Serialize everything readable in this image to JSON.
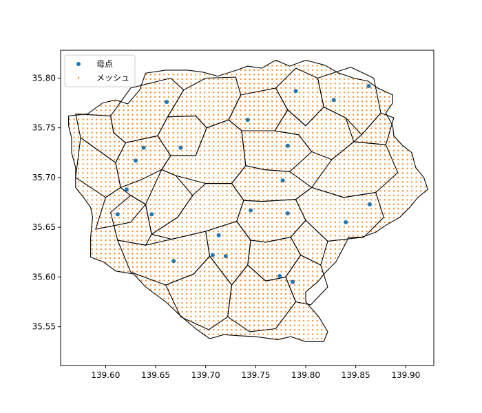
{
  "chart_data": {
    "type": "scatter",
    "title": "",
    "xlabel": "",
    "ylabel": "",
    "xlim": [
      139.555,
      139.928
    ],
    "ylim": [
      35.511,
      35.828
    ],
    "x_ticks": [
      "139.60",
      "139.65",
      "139.70",
      "139.75",
      "139.80",
      "139.85",
      "139.90"
    ],
    "y_ticks": [
      "35.55",
      "35.60",
      "35.65",
      "35.70",
      "35.75",
      "35.80"
    ],
    "grid": false,
    "legend_position": "upper-left",
    "series": [
      {
        "name": "母点",
        "color": "#1f77b4",
        "marker": "circle",
        "points": [
          [
            139.612,
            35.663
          ],
          [
            139.621,
            35.688
          ],
          [
            139.63,
            35.717
          ],
          [
            139.638,
            35.73
          ],
          [
            139.646,
            35.663
          ],
          [
            139.661,
            35.776
          ],
          [
            139.668,
            35.616
          ],
          [
            139.675,
            35.73
          ],
          [
            139.707,
            35.622
          ],
          [
            139.713,
            35.642
          ],
          [
            139.72,
            35.621
          ],
          [
            139.742,
            35.758
          ],
          [
            139.745,
            35.667
          ],
          [
            139.774,
            35.601
          ],
          [
            139.777,
            35.697
          ],
          [
            139.782,
            35.732
          ],
          [
            139.782,
            35.664
          ],
          [
            139.787,
            35.595
          ],
          [
            139.79,
            35.787
          ],
          [
            139.828,
            35.778
          ],
          [
            139.84,
            35.655
          ],
          [
            139.863,
            35.792
          ],
          [
            139.864,
            35.673
          ]
        ]
      },
      {
        "name": "メッシュ",
        "color": "#ff7f0e",
        "marker": "dot",
        "spacing": 0.0045
      }
    ],
    "voronoi_cells": [
      [
        [
          139.57,
          35.764
        ],
        [
          139.605,
          35.762
        ],
        [
          139.608,
          35.745
        ],
        [
          139.62,
          35.735
        ],
        [
          139.61,
          35.715
        ],
        [
          139.575,
          35.74
        ]
      ],
      [
        [
          139.575,
          35.74
        ],
        [
          139.61,
          35.715
        ],
        [
          139.615,
          35.69
        ],
        [
          139.6,
          35.68
        ],
        [
          139.57,
          35.7
        ]
      ],
      [
        [
          139.6,
          35.68
        ],
        [
          139.615,
          35.69
        ],
        [
          139.625,
          35.682
        ],
        [
          139.64,
          35.673
        ],
        [
          139.625,
          35.655
        ],
        [
          139.59,
          35.648
        ]
      ],
      [
        [
          139.62,
          35.735
        ],
        [
          139.652,
          35.742
        ],
        [
          139.665,
          35.722
        ],
        [
          139.656,
          35.708
        ],
        [
          139.636,
          35.698
        ],
        [
          139.615,
          35.69
        ],
        [
          139.61,
          35.715
        ]
      ],
      [
        [
          139.605,
          35.762
        ],
        [
          139.625,
          35.79
        ],
        [
          139.665,
          35.8
        ],
        [
          139.678,
          35.788
        ],
        [
          139.662,
          35.761
        ],
        [
          139.652,
          35.742
        ],
        [
          139.62,
          35.735
        ],
        [
          139.608,
          35.745
        ]
      ],
      [
        [
          139.652,
          35.742
        ],
        [
          139.662,
          35.761
        ],
        [
          139.69,
          35.762
        ],
        [
          139.701,
          35.75
        ],
        [
          139.69,
          35.722
        ],
        [
          139.665,
          35.722
        ]
      ],
      [
        [
          139.678,
          35.788
        ],
        [
          139.7,
          35.8
        ],
        [
          139.73,
          35.801
        ],
        [
          139.735,
          35.783
        ],
        [
          139.723,
          35.758
        ],
        [
          139.701,
          35.75
        ],
        [
          139.69,
          35.762
        ],
        [
          139.662,
          35.761
        ]
      ],
      [
        [
          139.665,
          35.722
        ],
        [
          139.69,
          35.722
        ],
        [
          139.701,
          35.75
        ],
        [
          139.723,
          35.758
        ],
        [
          139.736,
          35.747
        ],
        [
          139.74,
          35.712
        ],
        [
          139.726,
          35.694
        ],
        [
          139.7,
          35.694
        ],
        [
          139.67,
          35.702
        ],
        [
          139.656,
          35.708
        ]
      ],
      [
        [
          139.64,
          35.673
        ],
        [
          139.656,
          35.708
        ],
        [
          139.67,
          35.702
        ],
        [
          139.687,
          35.682
        ],
        [
          139.672,
          35.66
        ],
        [
          139.646,
          35.643
        ]
      ],
      [
        [
          139.625,
          35.682
        ],
        [
          139.64,
          35.673
        ],
        [
          139.646,
          35.643
        ],
        [
          139.64,
          35.632
        ],
        [
          139.612,
          35.637
        ],
        [
          139.605,
          35.665
        ]
      ],
      [
        [
          139.646,
          35.643
        ],
        [
          139.672,
          35.66
        ],
        [
          139.687,
          35.682
        ],
        [
          139.7,
          35.694
        ],
        [
          139.726,
          35.694
        ],
        [
          139.738,
          35.677
        ],
        [
          139.731,
          35.656
        ],
        [
          139.7,
          35.646
        ],
        [
          139.666,
          35.638
        ]
      ],
      [
        [
          139.612,
          35.637
        ],
        [
          139.64,
          35.632
        ],
        [
          139.666,
          35.638
        ],
        [
          139.7,
          35.646
        ],
        [
          139.704,
          35.621
        ],
        [
          139.688,
          35.603
        ],
        [
          139.66,
          35.592
        ],
        [
          139.625,
          35.605
        ]
      ],
      [
        [
          139.7,
          35.646
        ],
        [
          139.731,
          35.656
        ],
        [
          139.745,
          35.637
        ],
        [
          139.742,
          35.612
        ],
        [
          139.726,
          35.592
        ],
        [
          139.704,
          35.621
        ]
      ],
      [
        [
          139.688,
          35.603
        ],
        [
          139.704,
          35.621
        ],
        [
          139.726,
          35.592
        ],
        [
          139.722,
          35.56
        ],
        [
          139.703,
          35.547
        ],
        [
          139.675,
          35.56
        ],
        [
          139.66,
          35.592
        ]
      ],
      [
        [
          139.735,
          35.783
        ],
        [
          139.77,
          35.79
        ],
        [
          139.782,
          35.768
        ],
        [
          139.769,
          35.747
        ],
        [
          139.736,
          35.747
        ],
        [
          139.723,
          35.758
        ]
      ],
      [
        [
          139.736,
          35.747
        ],
        [
          139.769,
          35.747
        ],
        [
          139.793,
          35.743
        ],
        [
          139.806,
          35.726
        ],
        [
          139.784,
          35.706
        ],
        [
          139.758,
          35.708
        ],
        [
          139.74,
          35.712
        ]
      ],
      [
        [
          139.726,
          35.694
        ],
        [
          139.74,
          35.712
        ],
        [
          139.758,
          35.708
        ],
        [
          139.784,
          35.706
        ],
        [
          139.806,
          35.69
        ],
        [
          139.79,
          35.678
        ],
        [
          139.756,
          35.676
        ],
        [
          139.738,
          35.677
        ]
      ],
      [
        [
          139.731,
          35.656
        ],
        [
          139.738,
          35.677
        ],
        [
          139.756,
          35.676
        ],
        [
          139.79,
          35.678
        ],
        [
          139.8,
          35.657
        ],
        [
          139.785,
          35.64
        ],
        [
          139.76,
          35.635
        ],
        [
          139.745,
          35.637
        ]
      ],
      [
        [
          139.742,
          35.612
        ],
        [
          139.745,
          35.637
        ],
        [
          139.76,
          35.635
        ],
        [
          139.785,
          35.64
        ],
        [
          139.795,
          35.622
        ],
        [
          139.78,
          35.6
        ],
        [
          139.76,
          35.596
        ]
      ],
      [
        [
          139.726,
          35.592
        ],
        [
          139.742,
          35.612
        ],
        [
          139.76,
          35.596
        ],
        [
          139.78,
          35.6
        ],
        [
          139.79,
          35.575
        ],
        [
          139.77,
          35.548
        ],
        [
          139.744,
          35.545
        ],
        [
          139.722,
          35.56
        ]
      ],
      [
        [
          139.77,
          35.79
        ],
        [
          139.79,
          35.81
        ],
        [
          139.812,
          35.8
        ],
        [
          139.818,
          35.771
        ],
        [
          139.8,
          35.752
        ],
        [
          139.782,
          35.768
        ]
      ],
      [
        [
          139.769,
          35.747
        ],
        [
          139.782,
          35.768
        ],
        [
          139.8,
          35.752
        ],
        [
          139.818,
          35.771
        ],
        [
          139.84,
          35.76
        ],
        [
          139.848,
          35.736
        ],
        [
          139.826,
          35.718
        ],
        [
          139.806,
          35.726
        ],
        [
          139.793,
          35.743
        ]
      ],
      [
        [
          139.806,
          35.69
        ],
        [
          139.826,
          35.718
        ],
        [
          139.848,
          35.736
        ],
        [
          139.88,
          35.733
        ],
        [
          139.892,
          35.705
        ],
        [
          139.87,
          35.685
        ],
        [
          139.838,
          35.68
        ]
      ],
      [
        [
          139.79,
          35.678
        ],
        [
          139.806,
          35.69
        ],
        [
          139.838,
          35.68
        ],
        [
          139.87,
          35.685
        ],
        [
          139.878,
          35.66
        ],
        [
          139.858,
          35.64
        ],
        [
          139.822,
          35.636
        ],
        [
          139.8,
          35.657
        ]
      ],
      [
        [
          139.812,
          35.8
        ],
        [
          139.845,
          35.811
        ],
        [
          139.868,
          35.8
        ],
        [
          139.875,
          35.765
        ],
        [
          139.856,
          35.743
        ],
        [
          139.84,
          35.76
        ],
        [
          139.818,
          35.771
        ]
      ],
      [
        [
          139.848,
          35.736
        ],
        [
          139.856,
          35.743
        ],
        [
          139.875,
          35.765
        ],
        [
          139.888,
          35.76
        ],
        [
          139.88,
          35.733
        ]
      ],
      [
        [
          139.785,
          35.64
        ],
        [
          139.8,
          35.657
        ],
        [
          139.822,
          35.636
        ],
        [
          139.815,
          35.612
        ],
        [
          139.795,
          35.622
        ]
      ],
      [
        [
          139.78,
          35.6
        ],
        [
          139.795,
          35.622
        ],
        [
          139.815,
          35.612
        ],
        [
          139.822,
          35.59
        ],
        [
          139.805,
          35.572
        ],
        [
          139.79,
          35.575
        ]
      ]
    ],
    "boundary": [
      [
        139.563,
        35.762
      ],
      [
        139.582,
        35.764
      ],
      [
        139.597,
        35.775
      ],
      [
        139.61,
        35.778
      ],
      [
        139.622,
        35.774
      ],
      [
        139.634,
        35.788
      ],
      [
        139.64,
        35.805
      ],
      [
        139.66,
        35.808
      ],
      [
        139.682,
        35.808
      ],
      [
        139.697,
        35.806
      ],
      [
        139.712,
        35.802
      ],
      [
        139.731,
        35.808
      ],
      [
        139.742,
        35.812
      ],
      [
        139.756,
        35.81
      ],
      [
        139.77,
        35.818
      ],
      [
        139.784,
        35.812
      ],
      [
        139.8,
        35.818
      ],
      [
        139.819,
        35.813
      ],
      [
        139.833,
        35.805
      ],
      [
        139.848,
        35.8
      ],
      [
        139.862,
        35.797
      ],
      [
        139.872,
        35.79
      ],
      [
        139.887,
        35.783
      ],
      [
        139.887,
        35.775
      ],
      [
        139.88,
        35.765
      ],
      [
        139.887,
        35.752
      ],
      [
        139.888,
        35.742
      ],
      [
        139.896,
        35.733
      ],
      [
        139.906,
        35.725
      ],
      [
        139.91,
        35.71
      ],
      [
        139.918,
        35.7
      ],
      [
        139.922,
        35.688
      ],
      [
        139.912,
        35.68
      ],
      [
        139.904,
        35.67
      ],
      [
        139.894,
        35.66
      ],
      [
        139.88,
        35.652
      ],
      [
        139.87,
        35.645
      ],
      [
        139.856,
        35.64
      ],
      [
        139.843,
        35.64
      ],
      [
        139.838,
        35.63
      ],
      [
        139.83,
        35.615
      ],
      [
        139.82,
        35.605
      ],
      [
        139.812,
        35.595
      ],
      [
        139.8,
        35.585
      ],
      [
        139.8,
        35.575
      ],
      [
        139.813,
        35.56
      ],
      [
        139.822,
        35.545
      ],
      [
        139.818,
        35.535
      ],
      [
        139.8,
        35.535
      ],
      [
        139.785,
        35.54
      ],
      [
        139.772,
        35.537
      ],
      [
        139.75,
        35.54
      ],
      [
        139.732,
        35.541
      ],
      [
        139.718,
        35.542
      ],
      [
        139.704,
        35.538
      ],
      [
        139.69,
        35.548
      ],
      [
        139.676,
        35.56
      ],
      [
        139.66,
        35.575
      ],
      [
        139.64,
        35.59
      ],
      [
        139.628,
        35.603
      ],
      [
        139.61,
        35.606
      ],
      [
        139.598,
        35.615
      ],
      [
        139.585,
        35.62
      ],
      [
        139.585,
        35.64
      ],
      [
        139.587,
        35.66
      ],
      [
        139.585,
        35.67
      ],
      [
        139.578,
        35.68
      ],
      [
        139.57,
        35.69
      ],
      [
        139.57,
        35.71
      ],
      [
        139.566,
        35.725
      ],
      [
        139.566,
        35.74
      ],
      [
        139.563,
        35.752
      ]
    ]
  }
}
